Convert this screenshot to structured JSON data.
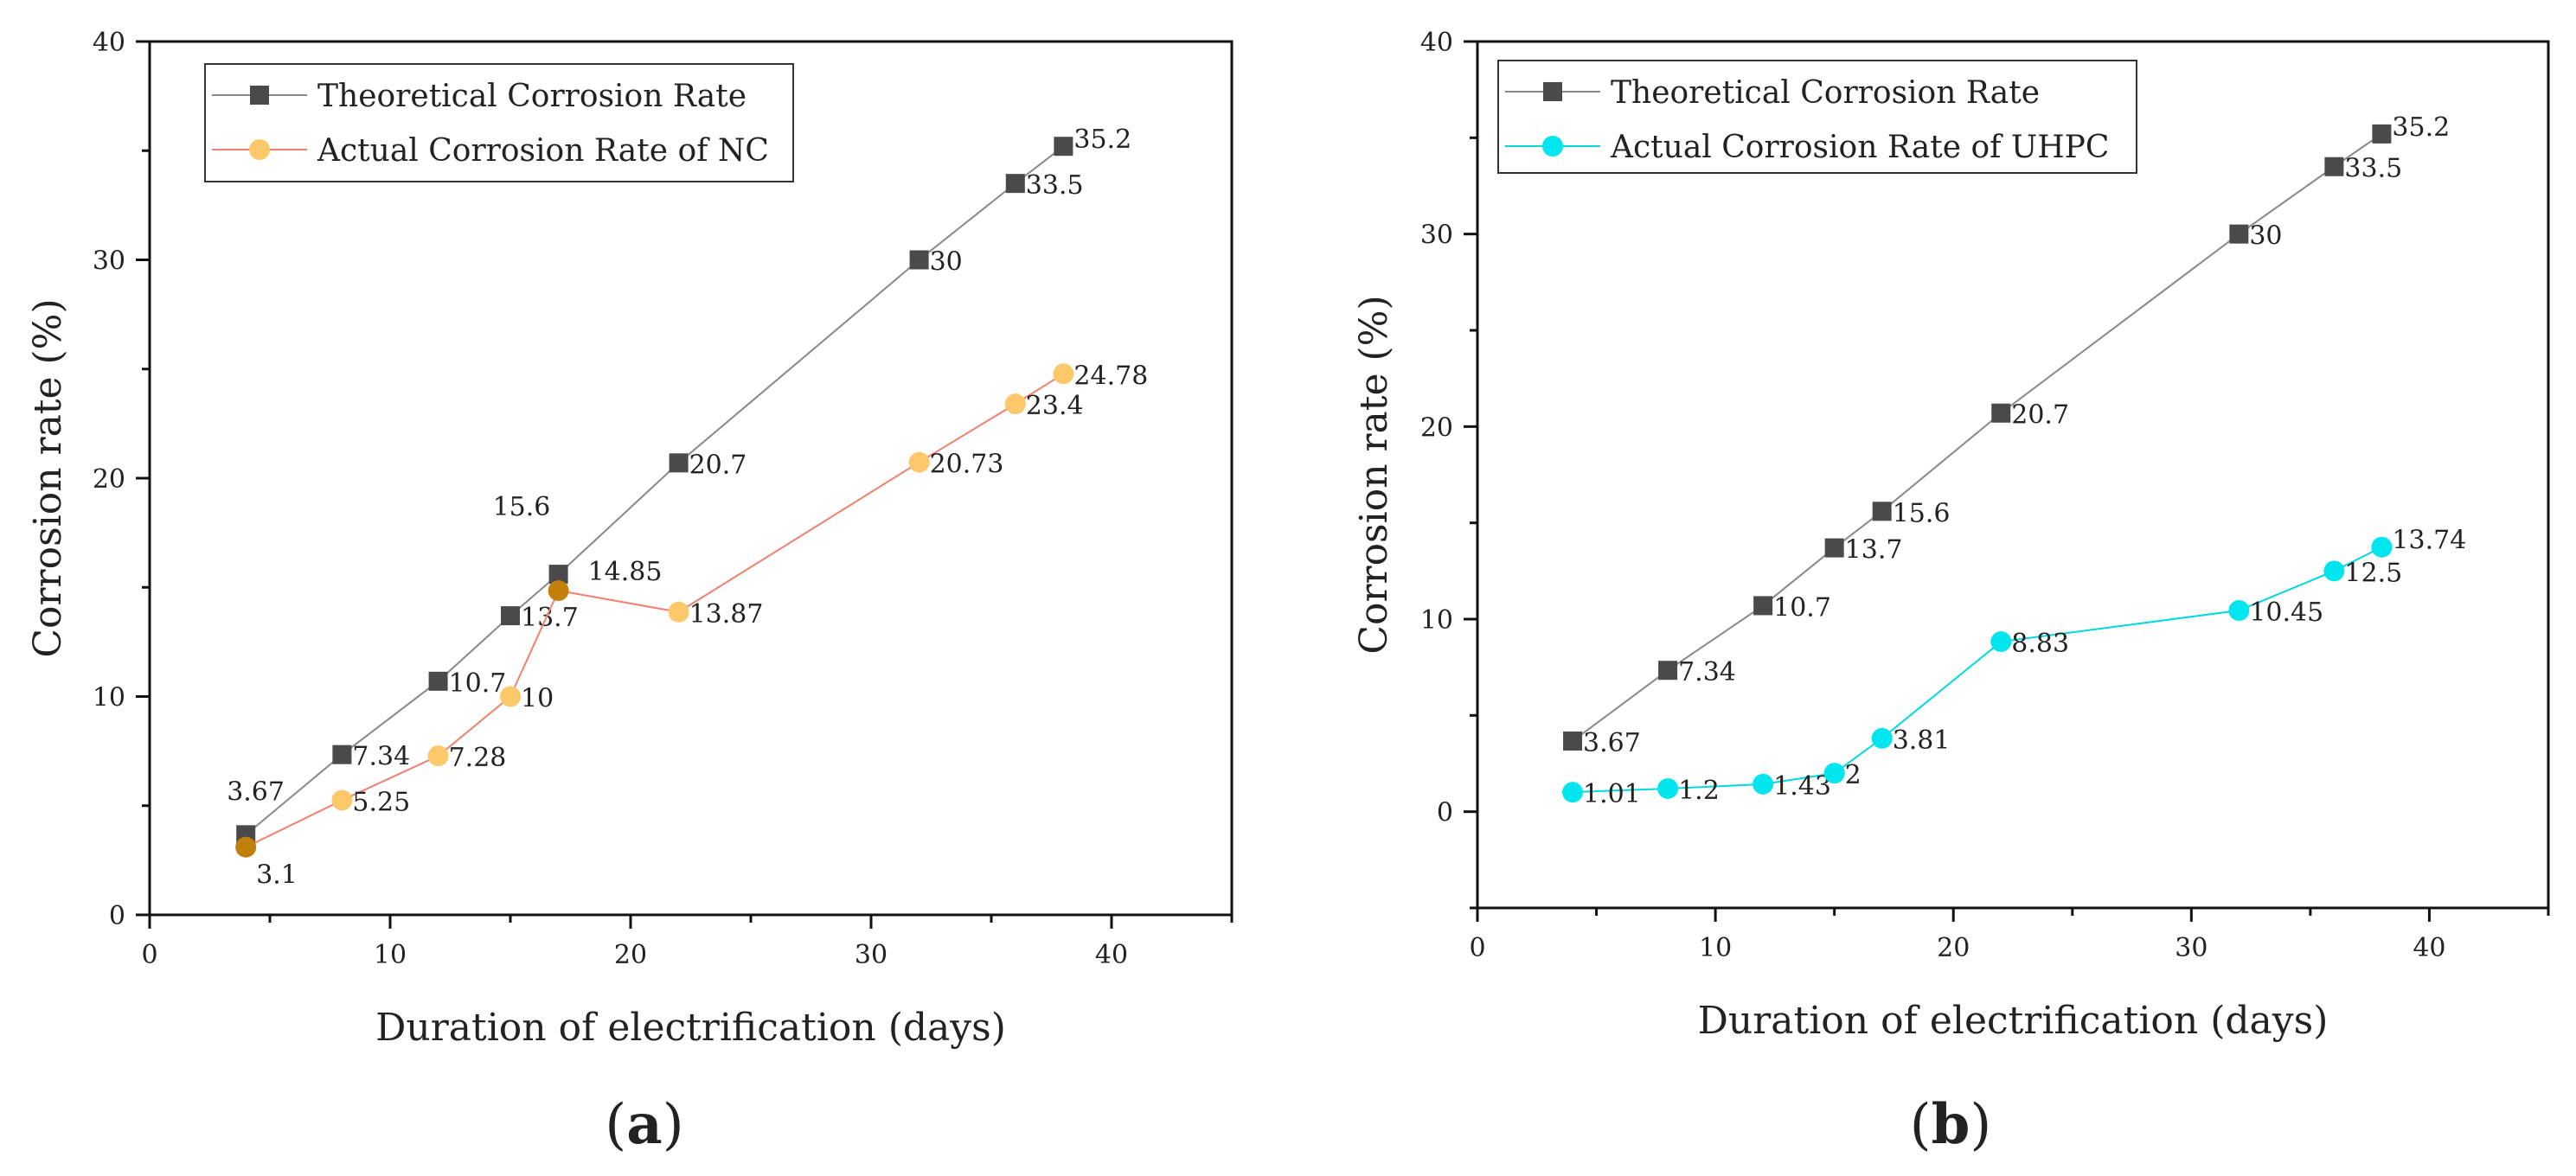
{
  "figure": {
    "panels": [
      {
        "id": "a",
        "open": "(",
        "letter": "a",
        "close": ")"
      },
      {
        "id": "b",
        "open": "(",
        "letter": "b",
        "close": ")"
      }
    ]
  },
  "chart_data": [
    {
      "type": "line",
      "panel": "a",
      "xlabel": "Duration of electrification (days)",
      "ylabel": "Corrosion rate (%)",
      "xlim": [
        0,
        45
      ],
      "ylim": [
        0,
        40
      ],
      "xticks": [
        0,
        10,
        20,
        30,
        40
      ],
      "yticks": [
        0,
        10,
        20,
        30,
        40
      ],
      "legend_position": "top-left",
      "series": [
        {
          "name": "Theoretical Corrosion Rate",
          "marker": "square",
          "line_color": "#888888",
          "marker_color": "#4a4a4a",
          "x": [
            4,
            8,
            12,
            15,
            17,
            22,
            32,
            36,
            38
          ],
          "y": [
            3.67,
            7.34,
            10.7,
            13.7,
            15.6,
            20.7,
            30,
            33.5,
            35.2
          ],
          "labels": [
            "3.67",
            "7.34",
            "10.7",
            "13.7",
            "15.6",
            "20.7",
            "30",
            "33.5",
            "35.2"
          ]
        },
        {
          "name": "Actual Corrosion Rate of NC",
          "marker": "circle",
          "line_color": "#f08070",
          "marker_color": "#fcc86a",
          "x": [
            4,
            8,
            12,
            15,
            17,
            22,
            32,
            36,
            38
          ],
          "y": [
            3.1,
            5.25,
            7.28,
            10,
            14.85,
            13.87,
            20.73,
            23.4,
            24.78
          ],
          "labels": [
            "3.1",
            "5.25",
            "7.28",
            "10",
            "14.85",
            "13.87",
            "20.73",
            "23.4",
            "24.78"
          ],
          "highlight_points": [
            0,
            4
          ],
          "highlight_color": "#c0800a"
        }
      ]
    },
    {
      "type": "line",
      "panel": "b",
      "xlabel": "Duration of electrification (days)",
      "ylabel": "Corrosion rate (%)",
      "xlim": [
        0,
        45
      ],
      "ylim": [
        -5,
        40
      ],
      "xticks": [
        0,
        10,
        20,
        30,
        40
      ],
      "yticks": [
        0,
        10,
        20,
        30,
        40
      ],
      "legend_position": "top-left",
      "series": [
        {
          "name": "Theoretical Corrosion Rate",
          "marker": "square",
          "line_color": "#888888",
          "marker_color": "#4a4a4a",
          "x": [
            4,
            8,
            12,
            15,
            17,
            22,
            32,
            36,
            38
          ],
          "y": [
            3.67,
            7.34,
            10.7,
            13.7,
            15.6,
            20.7,
            30,
            33.5,
            35.2
          ],
          "labels": [
            "3.67",
            "7.34",
            "10.7",
            "13.7",
            "15.6",
            "20.7",
            "30",
            "33.5",
            "35.2"
          ]
        },
        {
          "name": "Actual Corrosion Rate of UHPC",
          "marker": "circle",
          "line_color": "#00d8e0",
          "marker_color": "#00e5ee",
          "x": [
            4,
            8,
            12,
            15,
            17,
            22,
            32,
            36,
            38
          ],
          "y": [
            1.01,
            1.2,
            1.43,
            2,
            3.81,
            8.83,
            10.45,
            12.5,
            13.74
          ],
          "labels": [
            "1.01",
            "1.2",
            "1.43",
            "2",
            "3.81",
            "8.83",
            "10.45",
            "12.5",
            "13.74"
          ]
        }
      ]
    }
  ]
}
